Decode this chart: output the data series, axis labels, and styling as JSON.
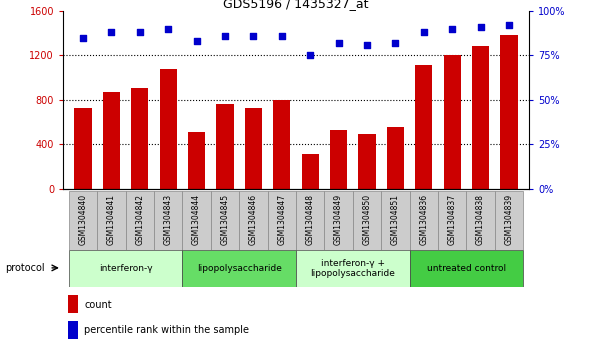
{
  "title": "GDS5196 / 1435327_at",
  "samples": [
    "GSM1304840",
    "GSM1304841",
    "GSM1304842",
    "GSM1304843",
    "GSM1304844",
    "GSM1304845",
    "GSM1304846",
    "GSM1304847",
    "GSM1304848",
    "GSM1304849",
    "GSM1304850",
    "GSM1304851",
    "GSM1304836",
    "GSM1304837",
    "GSM1304838",
    "GSM1304839"
  ],
  "counts": [
    730,
    870,
    910,
    1080,
    510,
    760,
    730,
    800,
    310,
    530,
    490,
    560,
    1110,
    1200,
    1280,
    1380
  ],
  "percentiles": [
    85,
    88,
    88,
    90,
    83,
    86,
    86,
    86,
    75,
    82,
    81,
    82,
    88,
    90,
    91,
    92
  ],
  "ylim_left": [
    0,
    1600
  ],
  "ylim_right": [
    0,
    100
  ],
  "yticks_left": [
    0,
    400,
    800,
    1200,
    1600
  ],
  "yticks_right": [
    0,
    25,
    50,
    75,
    100
  ],
  "groups": [
    {
      "label": "interferon-γ",
      "start": 0,
      "end": 4,
      "color": "#ccffcc"
    },
    {
      "label": "lipopolysaccharide",
      "start": 4,
      "end": 8,
      "color": "#66dd66"
    },
    {
      "label": "interferon-γ +\nlipopolysaccharide",
      "start": 8,
      "end": 12,
      "color": "#ccffcc"
    },
    {
      "label": "untreated control",
      "start": 12,
      "end": 16,
      "color": "#44cc44"
    }
  ],
  "bar_color": "#cc0000",
  "dot_color": "#0000cc",
  "label_color_left": "#cc0000",
  "label_color_right": "#0000cc",
  "grid_color": "#000000",
  "sample_bg": "#cccccc",
  "legend_count_label": "count",
  "legend_pct_label": "percentile rank within the sample",
  "protocol_label": "protocol"
}
